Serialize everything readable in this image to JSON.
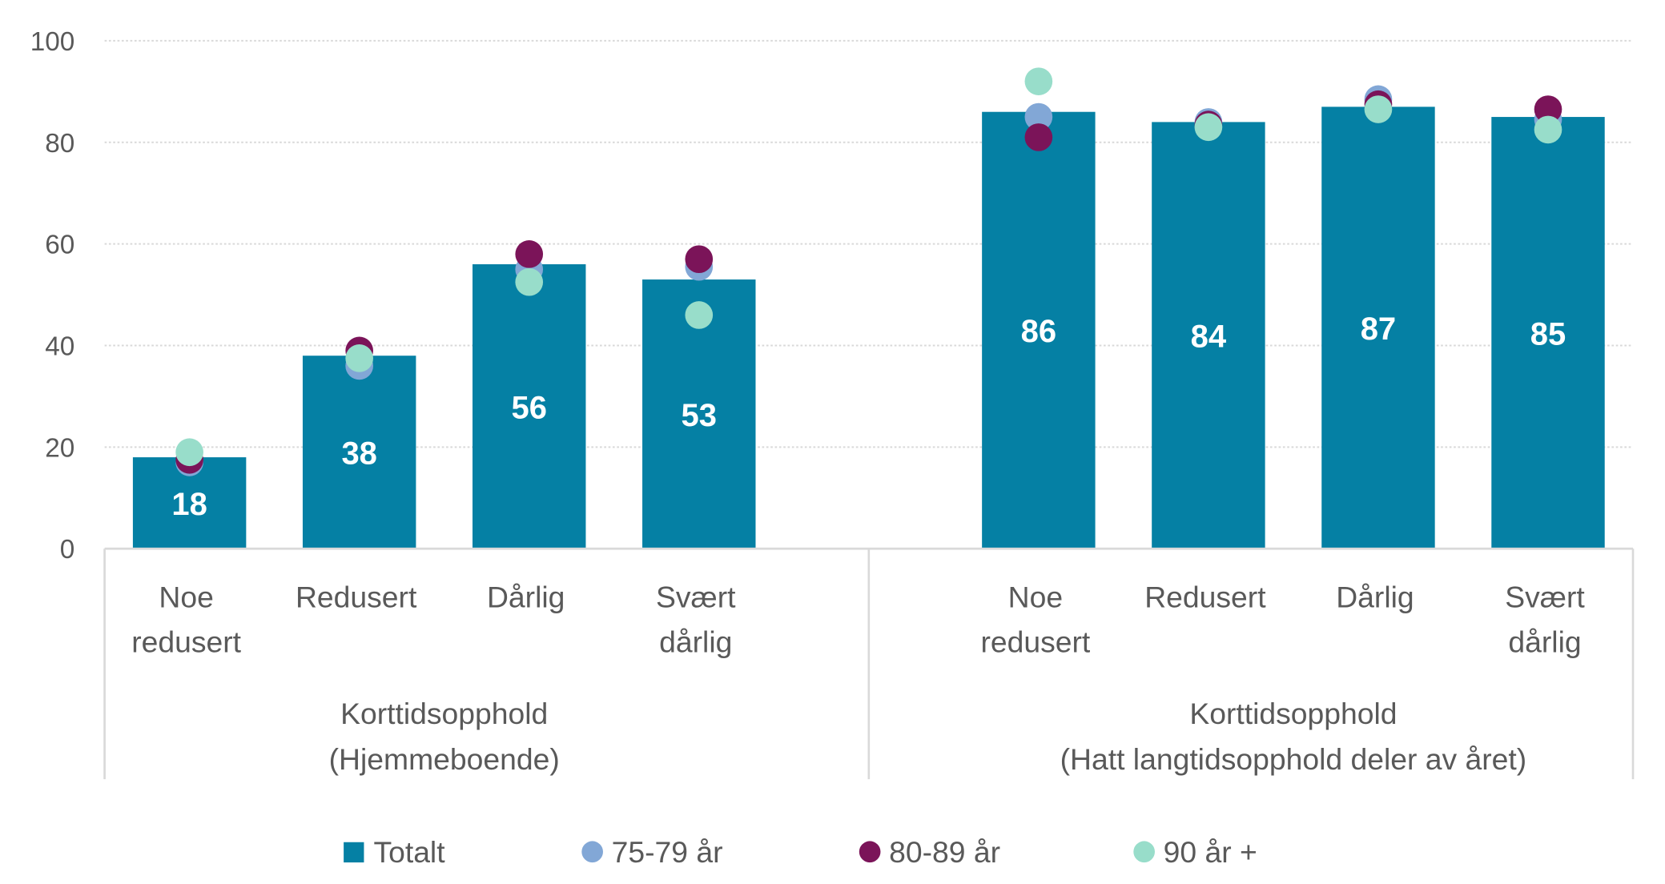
{
  "chart_data": {
    "type": "bar",
    "title": "",
    "xlabel": "",
    "ylabel": "",
    "ylim": [
      0,
      100
    ],
    "yticks": [
      0,
      20,
      40,
      60,
      80,
      100
    ],
    "grid": true,
    "legend_position": "bottom",
    "groups": [
      {
        "label_lines": [
          "Korttidsopphold",
          "(Hjemmeboende)"
        ],
        "categories": [
          [
            "Noe",
            "redusert"
          ],
          [
            "Redusert"
          ],
          [
            "Dårlig"
          ],
          [
            "Svært",
            "dårlig"
          ]
        ]
      },
      {
        "label_lines": [
          "Korttidsopphold",
          "(Hatt langtidsopphold deler av året)"
        ],
        "categories": [
          [
            "Noe",
            "redusert"
          ],
          [
            "Redusert"
          ],
          [
            "Dårlig"
          ],
          [
            "Svært",
            "dårlig"
          ]
        ]
      }
    ],
    "series": [
      {
        "name": "Totalt",
        "kind": "bar",
        "color": "#0580A4",
        "values": [
          18,
          38,
          56,
          53,
          86,
          84,
          87,
          85
        ],
        "labels": [
          "18",
          "38",
          "56",
          "53",
          "86",
          "84",
          "87",
          "85"
        ]
      },
      {
        "name": "75-79 år",
        "kind": "dot",
        "color": "#82A7D6",
        "values": [
          17,
          36,
          55,
          55.5,
          85,
          84,
          88.5,
          84.5
        ]
      },
      {
        "name": "80-89 år",
        "kind": "dot",
        "color": "#7B1459",
        "values": [
          17.5,
          39,
          58,
          57,
          81,
          83.5,
          87.5,
          86.5
        ]
      },
      {
        "name": "90 år +",
        "kind": "dot",
        "color": "#98DDCA",
        "values": [
          19,
          37.5,
          52.5,
          46,
          92,
          83,
          86.5,
          82.5
        ]
      }
    ]
  }
}
